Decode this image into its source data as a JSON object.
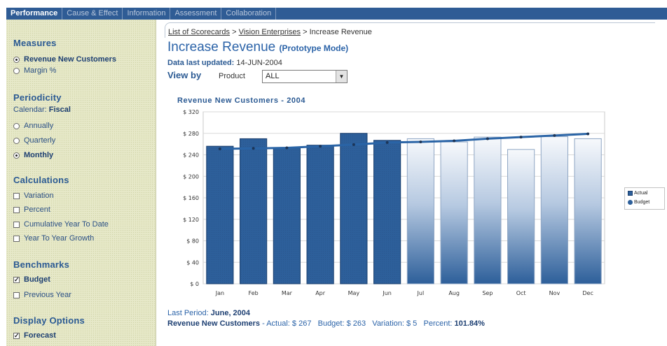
{
  "tabs": [
    {
      "label": "Performance",
      "active": true
    },
    {
      "label": "Cause & Effect",
      "active": false
    },
    {
      "label": "Information",
      "active": false
    },
    {
      "label": "Assessment",
      "active": false
    },
    {
      "label": "Collaboration",
      "active": false
    }
  ],
  "sidebar": {
    "measures": {
      "title": "Measures",
      "options": [
        {
          "label": "Revenue New Customers",
          "selected": true
        },
        {
          "label": "Margin %",
          "selected": false
        }
      ]
    },
    "periodicity": {
      "title": "Periodicity",
      "calendar_label": "Calendar:",
      "calendar_value": "Fiscal",
      "options": [
        {
          "label": "Annually",
          "selected": false
        },
        {
          "label": "Quarterly",
          "selected": false
        },
        {
          "label": "Monthly",
          "selected": true
        }
      ]
    },
    "calculations": {
      "title": "Calculations",
      "options": [
        {
          "label": "Variation",
          "checked": false
        },
        {
          "label": "Percent",
          "checked": false
        },
        {
          "label": "Cumulative Year To Date",
          "checked": false
        },
        {
          "label": "Year To Year Growth",
          "checked": false
        }
      ]
    },
    "benchmarks": {
      "title": "Benchmarks",
      "options": [
        {
          "label": "Budget",
          "checked": true
        },
        {
          "label": "Previous Year",
          "checked": false
        }
      ]
    },
    "display": {
      "title": "Display Options",
      "options": [
        {
          "label": "Forecast",
          "checked": true
        }
      ]
    }
  },
  "main": {
    "breadcrumb": {
      "link1": "List of Scorecards",
      "sep1": " > ",
      "link2": "Vision Enterprises",
      "sep2": " > ",
      "current": "Increase Revenue"
    },
    "title": "Increase Revenue",
    "title_mode": "(Prototype Mode)",
    "updated_label": "Data last updated:",
    "updated_value": "14-JUN-2004",
    "view_by_label": "View by",
    "product_label": "Product",
    "product_value": "ALL",
    "last_period_label": "Last Period:",
    "last_period_value": "June, 2004",
    "summary": {
      "measure": "Revenue New Customers",
      "actual": "- Actual: $ 267",
      "budget": "Budget: $ 263",
      "variation": "Variation: $ 5",
      "percent_label": "Percent:",
      "percent_value": "101.84%"
    }
  },
  "chart_data": {
    "type": "bar",
    "title": "Revenue New Customers  -  2004",
    "categories": [
      "Jan",
      "Feb",
      "Mar",
      "Apr",
      "May",
      "Jun",
      "Jul",
      "Aug",
      "Sep",
      "Oct",
      "Nov",
      "Dec"
    ],
    "series": [
      {
        "name": "Actual",
        "type": "bar",
        "values": [
          256,
          270,
          253,
          258,
          280,
          267,
          270,
          264,
          273,
          250,
          274,
          270
        ]
      },
      {
        "name": "Budget",
        "type": "line",
        "values": [
          251,
          252,
          253,
          256,
          259,
          263,
          264,
          266,
          270,
          273,
          276,
          279
        ]
      }
    ],
    "forecast_from_index": 6,
    "ylim": [
      0,
      320
    ],
    "yticks": [
      0,
      40,
      80,
      120,
      160,
      200,
      240,
      280,
      320
    ],
    "ytick_labels": [
      "$ 0",
      "$ 40",
      "$ 80",
      "$ 120",
      "$ 160",
      "$ 200",
      "$ 240",
      "$ 280",
      "$ 320"
    ],
    "xlabel": "",
    "ylabel": "",
    "legend_position": "right",
    "grid": true,
    "colors": {
      "actual": "#2d5f9a",
      "forecast_top": "#f4f7fb",
      "forecast_bottom": "#2d5f9a",
      "budget_line": "#2a64a6",
      "budget_marker": "#1c3558"
    }
  }
}
